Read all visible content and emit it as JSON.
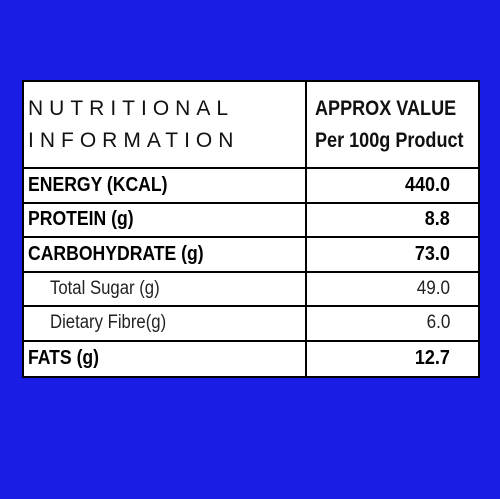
{
  "header": {
    "left": [
      "NUTRITIONAL",
      "INFORMATION"
    ],
    "right": [
      "APPROX VALUE",
      "Per 100g Product"
    ]
  },
  "rows": [
    {
      "label": "ENERGY (KCAL)",
      "value": "440.0",
      "style": "bold"
    },
    {
      "label": "PROTEIN (g)",
      "value": "8.8",
      "style": "bold"
    },
    {
      "label": "CARBOHYDRATE (g)",
      "value": "73.0",
      "style": "bold"
    },
    {
      "label": "Total Sugar (g)",
      "value": "49.0",
      "style": "sub"
    },
    {
      "label": "Dietary Fibre(g)",
      "value": "6.0",
      "style": "sub"
    },
    {
      "label": "FATS (g)",
      "value": "12.7",
      "style": "bold"
    }
  ]
}
